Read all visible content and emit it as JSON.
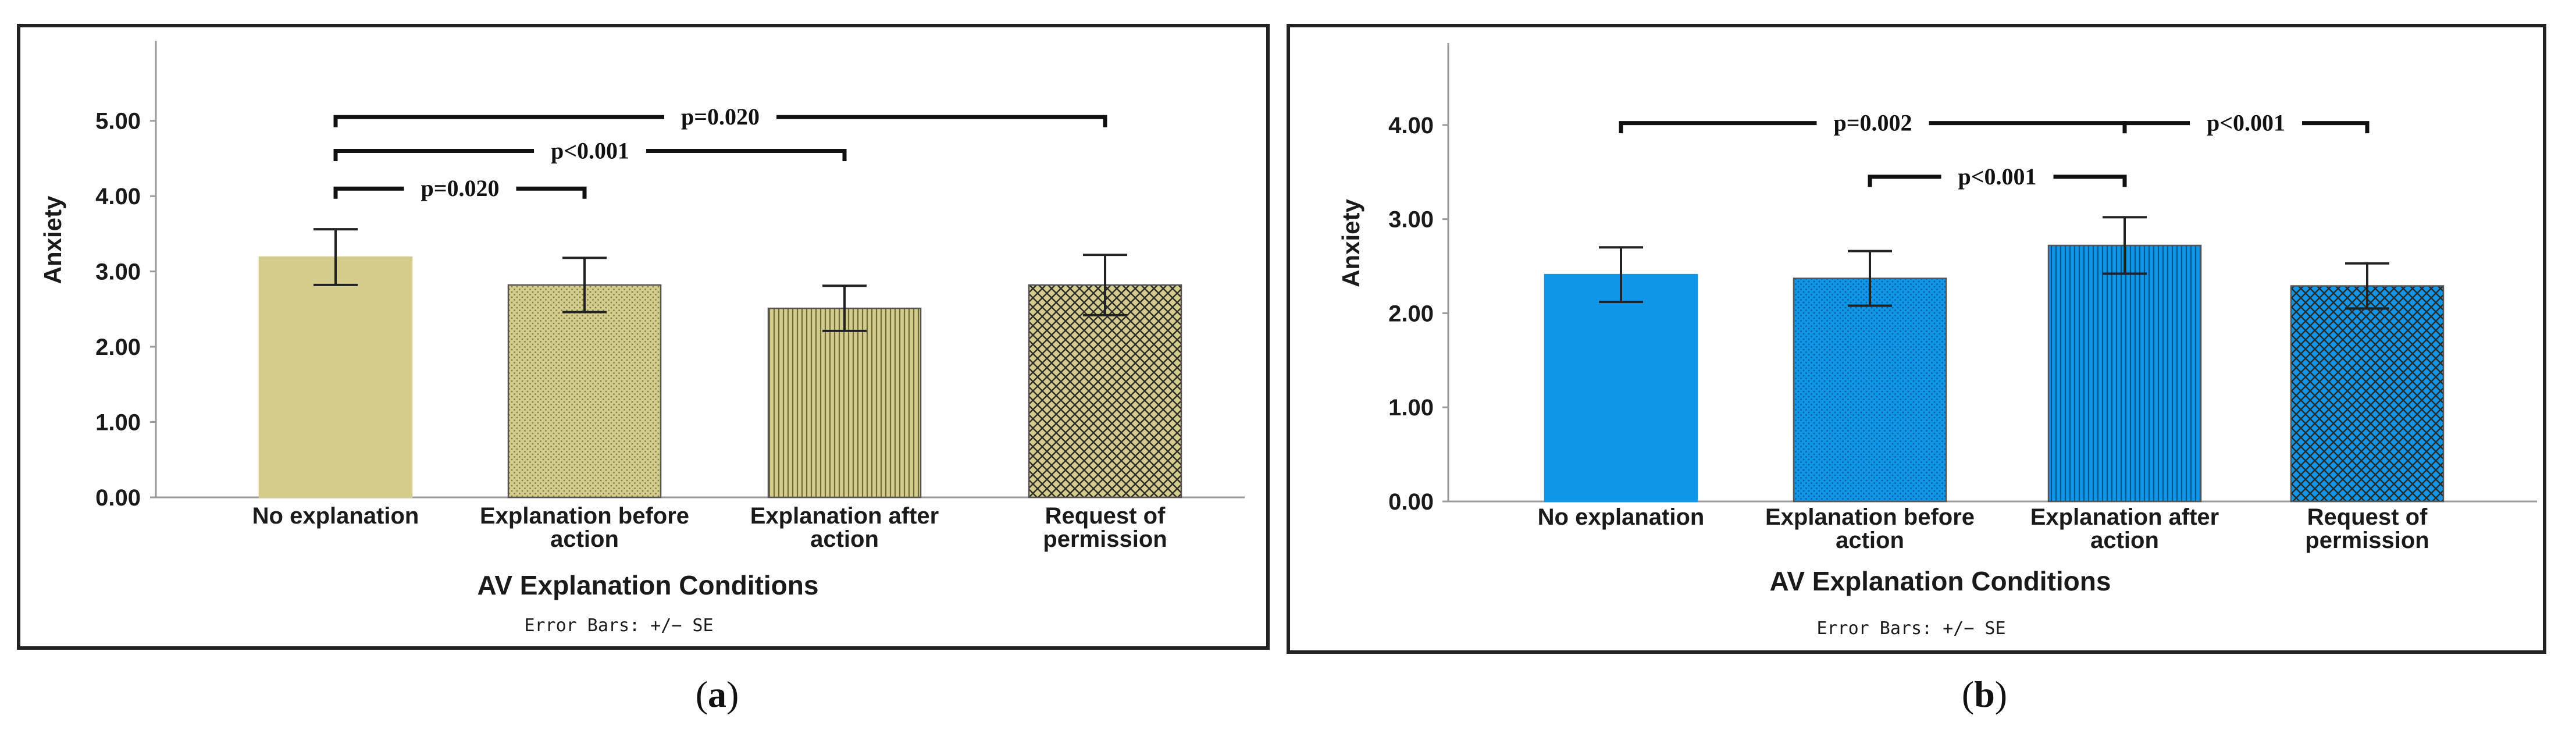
{
  "chart_data": [
    {
      "type": "bar",
      "panel_label": "a",
      "categories": [
        "No explanation",
        "Explanation before action",
        "Explanation after action",
        "Request of permission"
      ],
      "category_lines": [
        [
          "No explanation"
        ],
        [
          "Explanation before",
          "action"
        ],
        [
          "Explanation after",
          "action"
        ],
        [
          "Request of",
          "permission"
        ]
      ],
      "values": [
        3.19,
        2.82,
        2.51,
        2.82
      ],
      "error_low": [
        2.82,
        2.46,
        2.21,
        2.42
      ],
      "error_high": [
        3.56,
        3.18,
        2.81,
        3.22
      ],
      "ylabel": "Anxiety",
      "xlabel": "AV Explanation Conditions",
      "footnote": "Error Bars: +/− SE",
      "ylim": [
        0,
        5.6
      ],
      "yticks": [
        "0.00",
        "1.00",
        "2.00",
        "3.00",
        "4.00",
        "5.00"
      ],
      "ytick_values": [
        0,
        1,
        2,
        3,
        4,
        5
      ],
      "fill_color": "#d4cc8a",
      "edge_color": "#6e6a3e",
      "patterns": [
        "solid",
        "dots",
        "vertical-lines",
        "crosshatch"
      ],
      "comparisons": [
        {
          "from": 0,
          "to": 3,
          "label": "p=0.020",
          "y": 5.05
        },
        {
          "from": 0,
          "to": 2,
          "label": "p<0.001",
          "y": 4.6
        },
        {
          "from": 0,
          "to": 1,
          "label": "p=0.020",
          "y": 4.1
        }
      ]
    },
    {
      "type": "bar",
      "panel_label": "b",
      "categories": [
        "No explanation",
        "Explanation before action",
        "Explanation after action",
        "Request of permission"
      ],
      "category_lines": [
        [
          "No explanation"
        ],
        [
          "Explanation before",
          "action"
        ],
        [
          "Explanation after",
          "action"
        ],
        [
          "Request of",
          "permission"
        ]
      ],
      "values": [
        2.41,
        2.37,
        2.72,
        2.29
      ],
      "error_low": [
        2.12,
        2.08,
        2.42,
        2.05
      ],
      "error_high": [
        2.7,
        2.66,
        3.02,
        2.53
      ],
      "ylabel": "Anxiety",
      "xlabel": "AV Explanation Conditions",
      "footnote": "Error Bars: +/− SE",
      "ylim": [
        0,
        4.5
      ],
      "yticks": [
        "0.00",
        "1.00",
        "2.00",
        "3.00",
        "4.00"
      ],
      "ytick_values": [
        0,
        1,
        2,
        3,
        4
      ],
      "fill_color": "#0f96e6",
      "edge_color": "#0a4f86",
      "patterns": [
        "solid",
        "dots",
        "vertical-lines",
        "crosshatch"
      ],
      "comparisons": [
        {
          "from": 0,
          "to": 2,
          "label": "p=0.002",
          "y": 4.02
        },
        {
          "from": 2,
          "to": 3,
          "label": "p<0.001",
          "y": 4.02
        },
        {
          "from": 1,
          "to": 2,
          "label": "p<0.001",
          "y": 3.45
        }
      ]
    }
  ]
}
